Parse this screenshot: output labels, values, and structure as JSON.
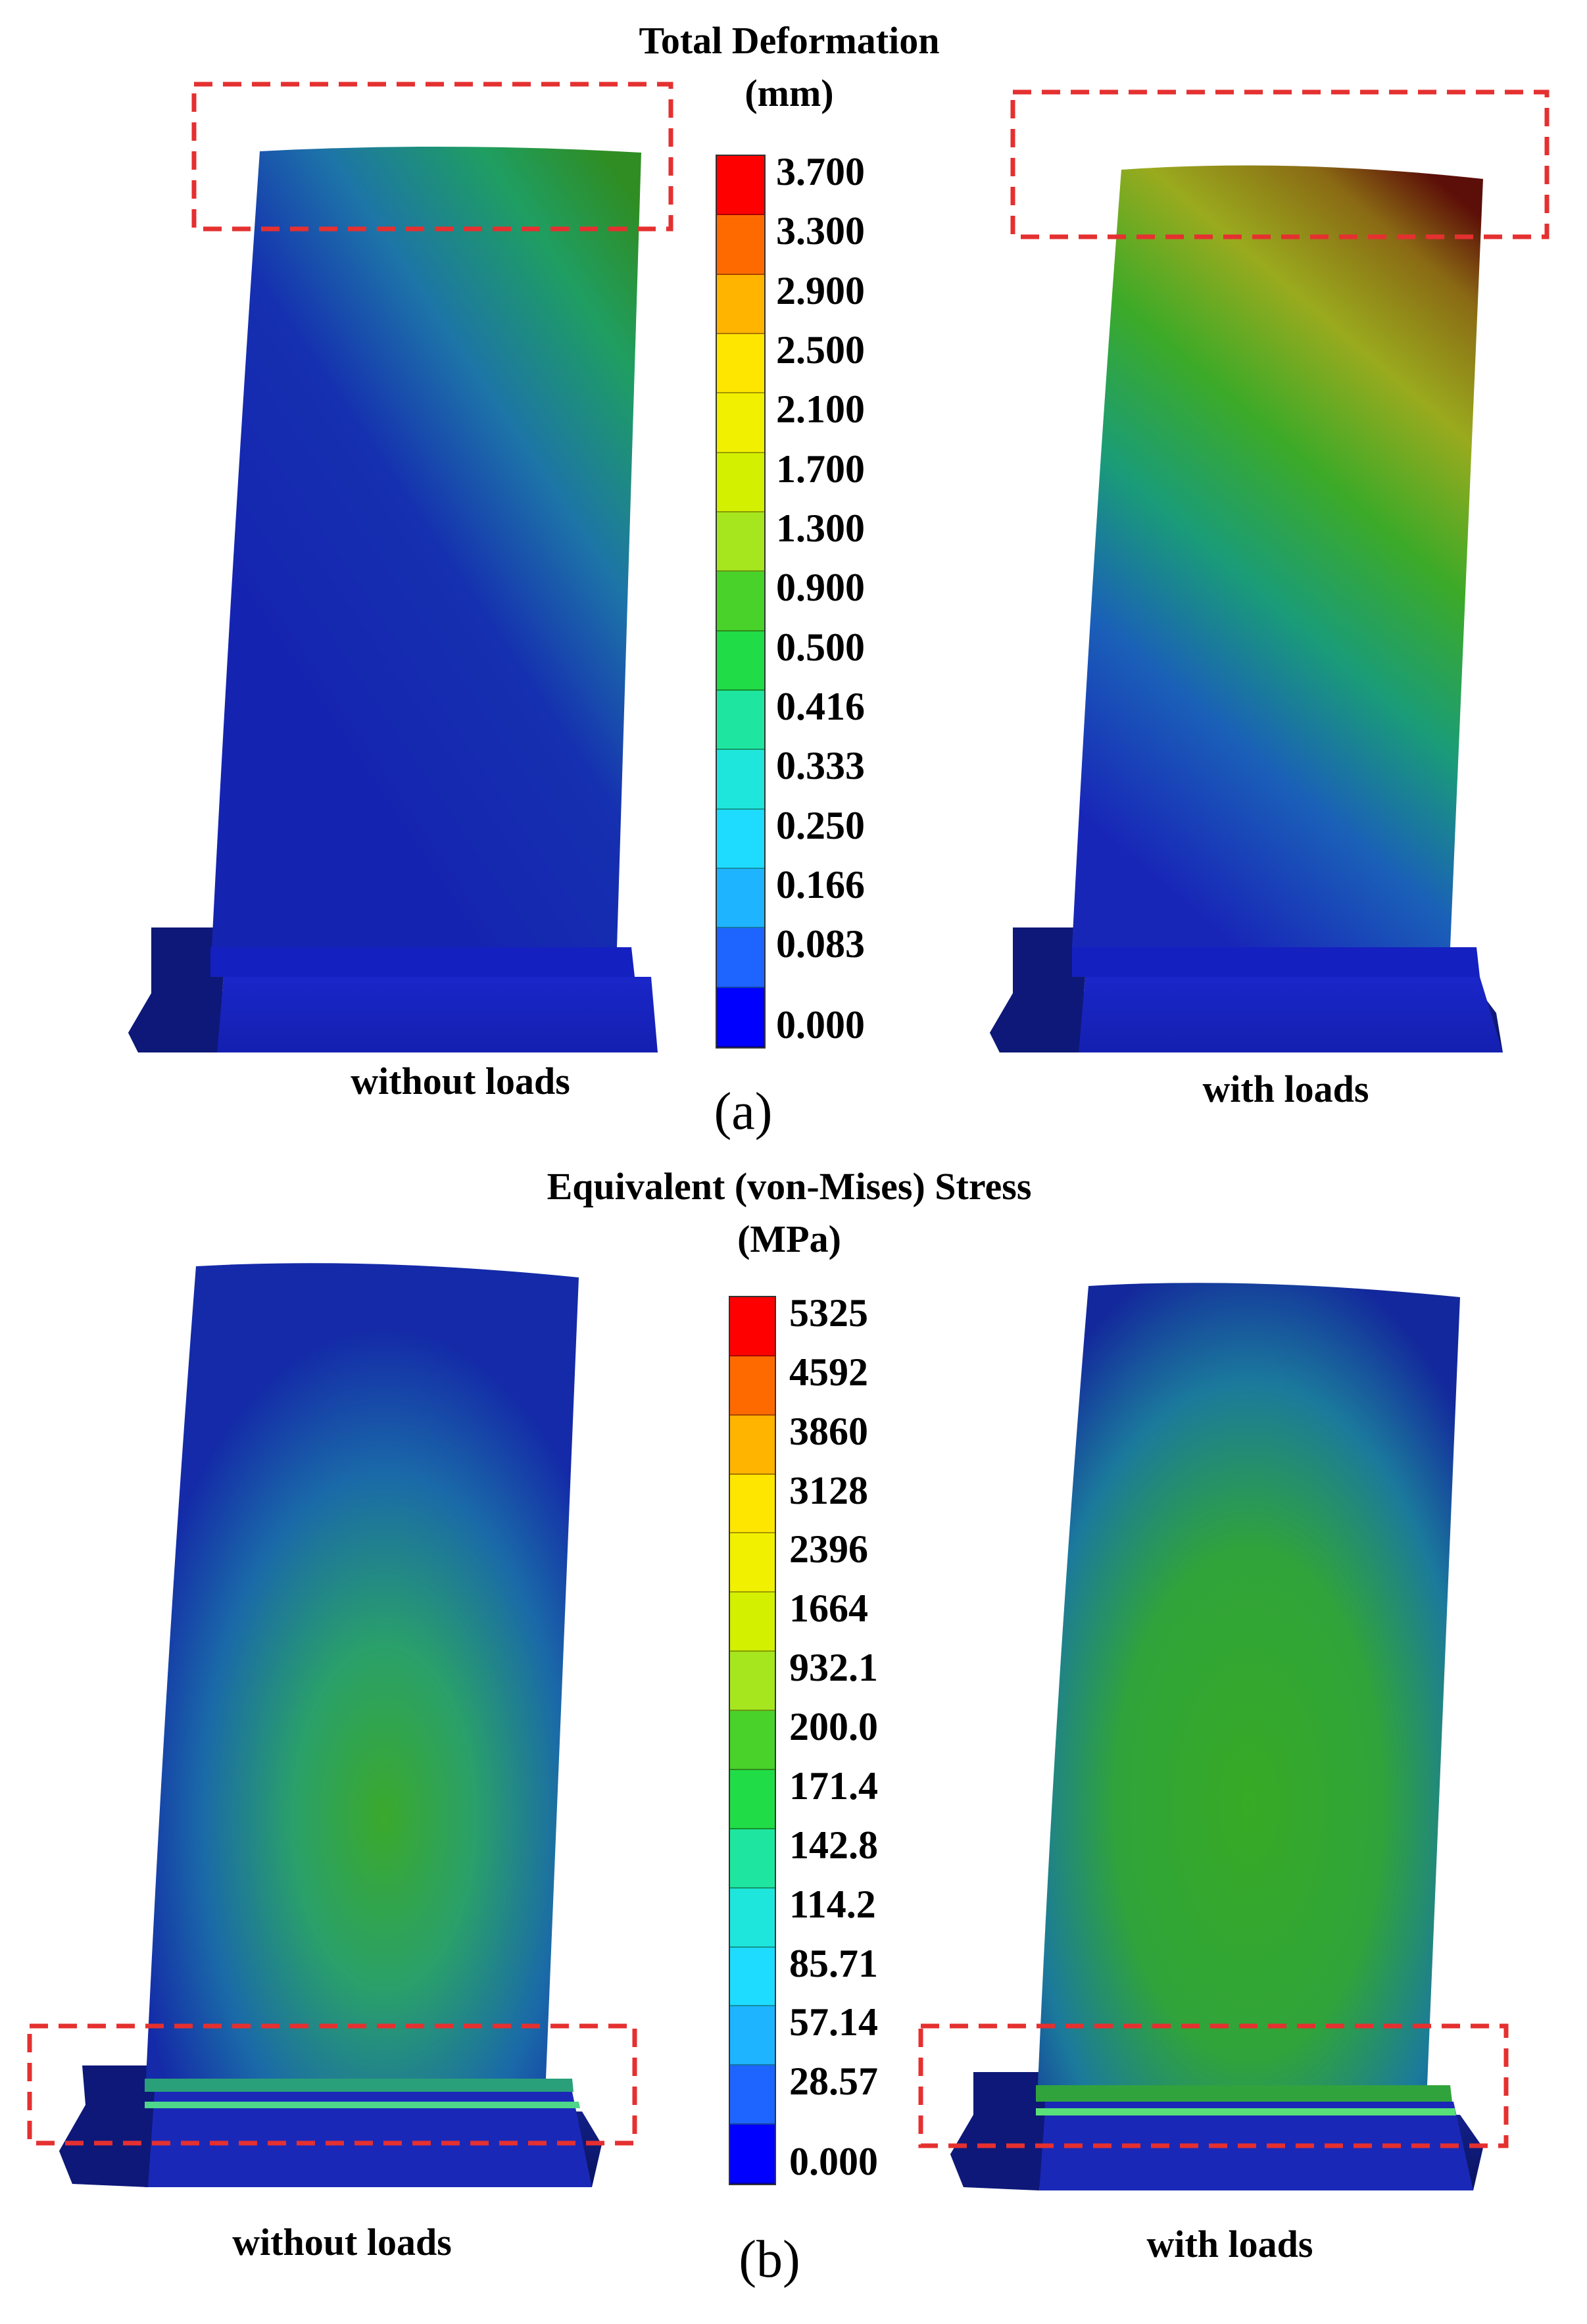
{
  "panel_a": {
    "title": "Total Deformation",
    "unit": "(mm)",
    "label": "(a)",
    "left_caption": "without loads",
    "right_caption": "with loads",
    "legend_levels": [
      "3.700",
      "3.300",
      "2.900",
      "2.500",
      "2.100",
      "1.700",
      "1.300",
      "0.900",
      "0.500",
      "0.416",
      "0.333",
      "0.250",
      "0.166",
      "0.083",
      "0.000"
    ]
  },
  "panel_b": {
    "title": "Equivalent (von-Mises) Stress",
    "unit": "(MPa)",
    "label": "(b)",
    "left_caption": "without loads",
    "right_caption": "with loads",
    "legend_levels": [
      "5325",
      "4592",
      "3860",
      "3128",
      "2396",
      "1664",
      "932.1",
      "200.0",
      "171.4",
      "142.8",
      "114.2",
      "85.71",
      "57.14",
      "28.57",
      "0.000"
    ]
  },
  "colors": {
    "legend": [
      "#ff0000",
      "#ff6a00",
      "#ffb400",
      "#ffe600",
      "#f0f000",
      "#d2f000",
      "#a6e61e",
      "#48d22a",
      "#20dc46",
      "#1ee6a0",
      "#1ee6dc",
      "#1edcff",
      "#1eb4ff",
      "#1e64ff",
      "#0000ff"
    ],
    "highlight_box": "#e53030"
  }
}
